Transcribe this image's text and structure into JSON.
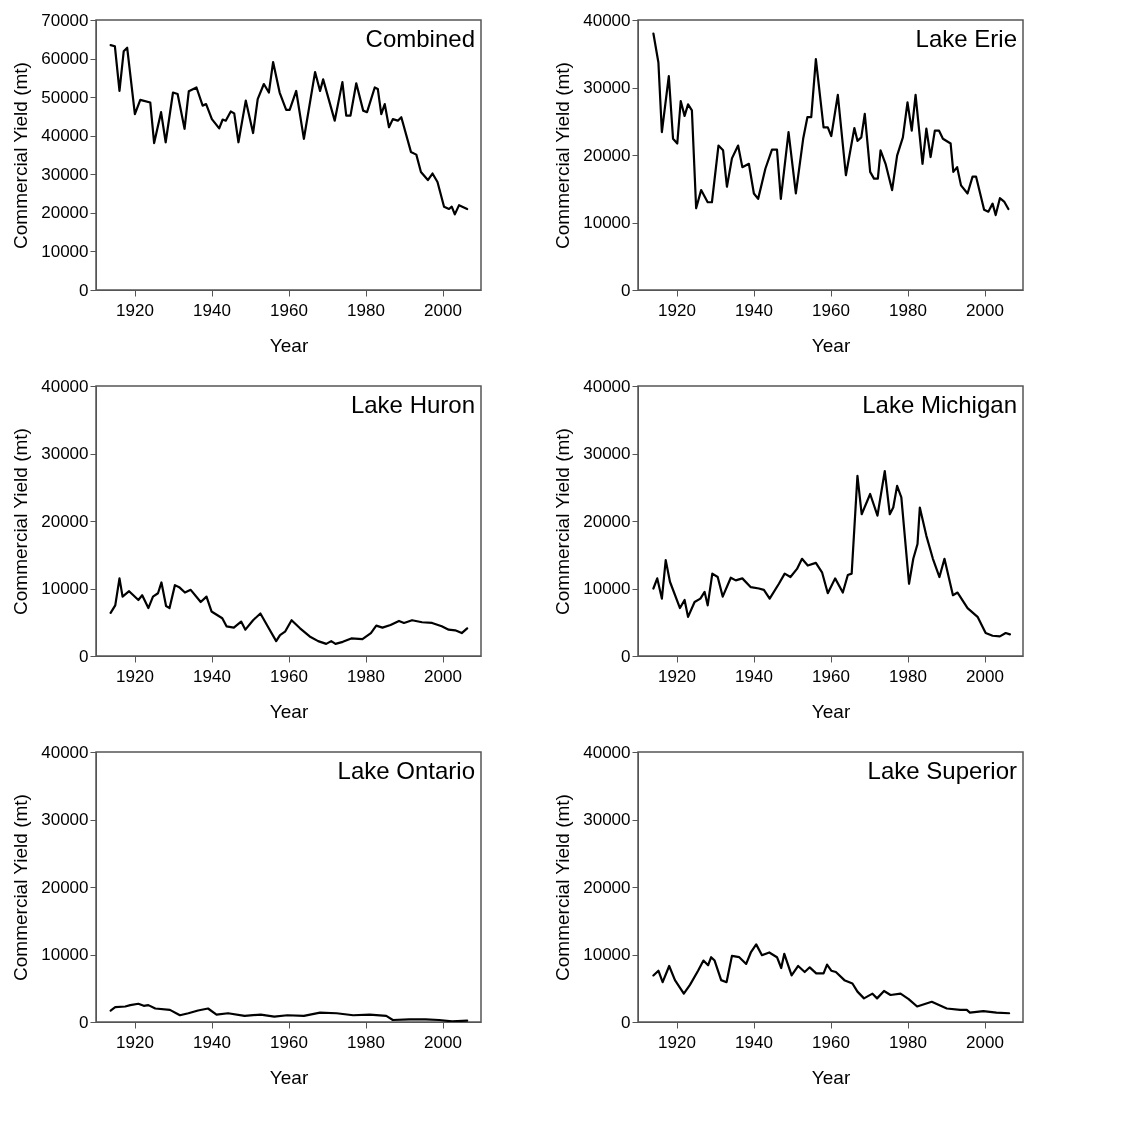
{
  "chart_data": [
    {
      "type": "line",
      "title": "Combined",
      "xlabel": "Year",
      "ylabel": "Commercial Yield (mt)",
      "xlim": [
        1910,
        2010
      ],
      "xticks": [
        1920,
        1940,
        1960,
        1980,
        2000
      ],
      "ylim": [
        0,
        70000
      ],
      "yticks": [
        0,
        10000,
        20000,
        30000,
        40000,
        50000,
        60000,
        70000
      ],
      "grid": false,
      "series": [
        {
          "color": "#000000",
          "x": [
            1913.8,
            1914.9,
            1916.1,
            1917.2,
            1918.1,
            1920.1,
            1921.5,
            1924.1,
            1925.1,
            1926.9,
            1928.1,
            1930.0,
            1931.2,
            1933.0,
            1934.1,
            1936.1,
            1937.7,
            1938.6,
            1940.1,
            1942.0,
            1942.9,
            1943.7,
            1945.0,
            1945.9,
            1947.0,
            1948.9,
            1950.8,
            1952.0,
            1953.6,
            1954.9,
            1956.0,
            1957.7,
            1959.4,
            1960.3,
            1962.0,
            1964.0,
            1966.9,
            1968.2,
            1969.0,
            1972.0,
            1974.0,
            1975.0,
            1976.1,
            1977.6,
            1979.4,
            1980.4,
            1982.4,
            1983.2,
            1984.1,
            1985.0,
            1986.1,
            1987.1,
            1988.4,
            1989.3,
            1991.8,
            1993.2,
            1994.4,
            1996.2,
            1997.4,
            1998.7,
            2000.4,
            2001.7,
            2002.4,
            2003.2,
            2004.3,
            2006.4
          ],
          "values": [
            63500,
            63200,
            51600,
            61900,
            62800,
            45600,
            49300,
            48600,
            38100,
            46100,
            38300,
            51200,
            50800,
            41800,
            51500,
            52500,
            47800,
            48200,
            44300,
            41900,
            44200,
            43900,
            46300,
            45800,
            38300,
            49100,
            40700,
            49500,
            53400,
            51200,
            59100,
            51200,
            46700,
            46700,
            51600,
            39200,
            56500,
            51600,
            54600,
            43900,
            53900,
            45200,
            45200,
            53600,
            46500,
            46100,
            52500,
            52100,
            45600,
            48200,
            42200,
            44300,
            43900,
            44800,
            35800,
            35100,
            30600,
            28500,
            30200,
            28000,
            21600,
            21000,
            21600,
            19600,
            22000,
            21000
          ]
        }
      ]
    },
    {
      "type": "line",
      "title": "Lake Erie",
      "xlabel": "Year",
      "ylabel": "Commercial Yield (mt)",
      "xlim": [
        1910,
        2010
      ],
      "xticks": [
        1920,
        1940,
        1960,
        1980,
        2000
      ],
      "ylim": [
        0,
        40000
      ],
      "yticks": [
        0,
        10000,
        20000,
        30000,
        40000
      ],
      "grid": false,
      "series": [
        {
          "color": "#000000",
          "x": [
            1914.0,
            1915.3,
            1916.2,
            1918.0,
            1919.1,
            1920.2,
            1921.1,
            1922.1,
            1923.0,
            1924.0,
            1925.1,
            1926.4,
            1928.1,
            1929.2,
            1930.9,
            1932.1,
            1933.1,
            1934.4,
            1936.0,
            1937.1,
            1938.8,
            1940.1,
            1941.2,
            1943.1,
            1944.8,
            1946.1,
            1947.1,
            1949.1,
            1951.0,
            1952.9,
            1954.0,
            1955.0,
            1956.2,
            1958.2,
            1959.3,
            1960.2,
            1961.9,
            1964.0,
            1966.2,
            1967.0,
            1968.0,
            1968.9,
            1970.3,
            1971.3,
            1972.3,
            1973.0,
            1974.3,
            1976.0,
            1977.3,
            1978.8,
            1980.0,
            1981.1,
            1982.1,
            1983.9,
            1984.9,
            1986.0,
            1987.1,
            1988.2,
            1989.2,
            1991.2,
            1991.9,
            1992.9,
            1993.9,
            1995.6,
            1996.9,
            1997.8,
            1999.9,
            2001.0,
            2002.1,
            2002.9,
            2004.0,
            2005.1,
            2006.2
          ],
          "values": [
            38000,
            33700,
            23400,
            31700,
            22400,
            21700,
            28000,
            25800,
            27500,
            26600,
            12100,
            14800,
            13000,
            13000,
            21400,
            20700,
            15300,
            19500,
            21400,
            18200,
            18700,
            14300,
            13500,
            18000,
            20800,
            20800,
            13500,
            23400,
            14300,
            22400,
            25600,
            25600,
            34200,
            24100,
            24100,
            22800,
            28900,
            17000,
            24000,
            22100,
            22600,
            26100,
            17500,
            16500,
            16500,
            20700,
            18700,
            14800,
            19900,
            22600,
            27800,
            23600,
            28900,
            18700,
            23900,
            19700,
            23600,
            23600,
            22400,
            21700,
            17500,
            18200,
            15500,
            14300,
            16800,
            16800,
            11900,
            11600,
            12800,
            11100,
            13600,
            13100,
            12000
          ]
        }
      ]
    },
    {
      "type": "line",
      "title": "Lake Huron",
      "xlabel": "Year",
      "ylabel": "Commercial Yield (mt)",
      "xlim": [
        1910,
        2010
      ],
      "xticks": [
        1920,
        1940,
        1960,
        1980,
        2000
      ],
      "ylim": [
        0,
        40000
      ],
      "yticks": [
        0,
        10000,
        20000,
        30000,
        40000
      ],
      "grid": false,
      "series": [
        {
          "color": "#000000",
          "x": [
            1913.8,
            1915.0,
            1916.1,
            1916.9,
            1918.6,
            1921.0,
            1922.0,
            1923.6,
            1924.8,
            1926.1,
            1927.0,
            1928.2,
            1929.1,
            1930.5,
            1931.6,
            1933.1,
            1934.6,
            1937.2,
            1938.7,
            1940.0,
            1942.8,
            1943.9,
            1945.8,
            1947.7,
            1948.8,
            1950.8,
            1952.7,
            1954.4,
            1956.8,
            1957.8,
            1959.1,
            1960.8,
            1963.0,
            1965.5,
            1967.7,
            1969.8,
            1971.1,
            1972.2,
            1974.1,
            1976.3,
            1979.2,
            1981.4,
            1982.8,
            1984.4,
            1986.5,
            1988.7,
            1990.0,
            1992.1,
            1994.7,
            1997.3,
            1999.8,
            2001.6,
            2003.3,
            2005.0,
            2006.4
          ],
          "values": [
            6400,
            7500,
            11500,
            8800,
            9600,
            8300,
            9000,
            7100,
            8800,
            9300,
            10900,
            7400,
            7100,
            10500,
            10200,
            9400,
            9800,
            8000,
            8800,
            6600,
            5600,
            4400,
            4200,
            5100,
            3900,
            5300,
            6300,
            4600,
            2200,
            3100,
            3600,
            5300,
            4100,
            2900,
            2200,
            1800,
            2200,
            1800,
            2100,
            2600,
            2500,
            3400,
            4500,
            4200,
            4600,
            5200,
            4900,
            5300,
            5000,
            4900,
            4400,
            3900,
            3800,
            3400,
            4100
          ]
        }
      ]
    },
    {
      "type": "line",
      "title": "Lake Michigan",
      "xlabel": "Year",
      "ylabel": "Commercial Yield (mt)",
      "xlim": [
        1910,
        2010
      ],
      "xticks": [
        1920,
        1940,
        1960,
        1980,
        2000
      ],
      "ylim": [
        0,
        40000
      ],
      "yticks": [
        0,
        10000,
        20000,
        30000,
        40000
      ],
      "grid": false,
      "series": [
        {
          "color": "#000000",
          "x": [
            1914.0,
            1915.0,
            1916.2,
            1917.2,
            1918.3,
            1920.9,
            1922.1,
            1923.0,
            1924.7,
            1926.2,
            1927.3,
            1928.1,
            1929.3,
            1930.7,
            1932.0,
            1934.1,
            1935.4,
            1937.1,
            1939.3,
            1941.4,
            1942.7,
            1944.2,
            1946.6,
            1948.1,
            1949.6,
            1951.3,
            1952.6,
            1954.1,
            1956.2,
            1957.8,
            1959.3,
            1961.2,
            1963.2,
            1964.5,
            1965.5,
            1967.0,
            1968.1,
            1970.3,
            1972.2,
            1974.1,
            1975.4,
            1976.3,
            1977.3,
            1978.4,
            1980.4,
            1981.5,
            1982.6,
            1983.2,
            1984.9,
            1986.6,
            1988.3,
            1989.6,
            1991.8,
            1993.0,
            1995.6,
            1998.2,
            2000.3,
            2002.1,
            2004.0,
            2005.5,
            2006.6
          ],
          "values": [
            10000,
            11500,
            8500,
            14200,
            11000,
            7100,
            8300,
            5800,
            8000,
            8500,
            9500,
            7500,
            12200,
            11700,
            8800,
            11600,
            11200,
            11500,
            10200,
            10000,
            9800,
            8500,
            10700,
            12200,
            11700,
            12900,
            14400,
            13400,
            13800,
            12400,
            9300,
            11500,
            9400,
            12000,
            12200,
            26700,
            21000,
            24000,
            20800,
            27400,
            21000,
            22000,
            25200,
            23500,
            10700,
            14400,
            16600,
            22000,
            17800,
            14400,
            11700,
            14400,
            9000,
            9400,
            7100,
            5800,
            3400,
            3000,
            2900,
            3400,
            3200
          ]
        }
      ]
    },
    {
      "type": "line",
      "title": "Lake Ontario",
      "xlabel": "Year",
      "ylabel": "Commercial Yield (mt)",
      "xlim": [
        1910,
        2010
      ],
      "xticks": [
        1920,
        1940,
        1960,
        1980,
        2000
      ],
      "ylim": [
        0,
        40000
      ],
      "yticks": [
        0,
        10000,
        20000,
        30000,
        40000
      ],
      "grid": false,
      "series": [
        {
          "color": "#000000",
          "x": [
            1913.8,
            1915.0,
            1917.6,
            1918.9,
            1921.0,
            1922.4,
            1923.6,
            1925.4,
            1929.2,
            1931.8,
            1934.0,
            1936.5,
            1939.1,
            1941.3,
            1944.3,
            1948.6,
            1952.8,
            1956.3,
            1959.7,
            1964.0,
            1968.2,
            1972.5,
            1976.8,
            1981.1,
            1985.4,
            1987.1,
            1991.4,
            1995.6,
            1999.1,
            2002.5,
            2006.4
          ],
          "values": [
            1700,
            2200,
            2300,
            2500,
            2700,
            2400,
            2500,
            2000,
            1800,
            1000,
            1300,
            1700,
            2000,
            1100,
            1300,
            900,
            1100,
            800,
            1000,
            900,
            1400,
            1300,
            1000,
            1100,
            900,
            300,
            400,
            400,
            300,
            100,
            200
          ]
        }
      ]
    },
    {
      "type": "line",
      "title": "Lake Superior",
      "xlabel": "Year",
      "ylabel": "Commercial Yield (mt)",
      "xlim": [
        1910,
        2010
      ],
      "xticks": [
        1920,
        1940,
        1960,
        1980,
        2000
      ],
      "ylim": [
        0,
        40000
      ],
      "yticks": [
        0,
        10000,
        20000,
        30000,
        40000
      ],
      "grid": false,
      "series": [
        {
          "color": "#000000",
          "x": [
            1914.0,
            1915.3,
            1916.4,
            1918.1,
            1919.6,
            1921.9,
            1923.5,
            1925.6,
            1927.0,
            1928.2,
            1929.0,
            1929.9,
            1931.6,
            1933.0,
            1934.4,
            1936.3,
            1938.1,
            1939.3,
            1940.7,
            1942.2,
            1944.1,
            1946.1,
            1947.2,
            1948.0,
            1949.9,
            1951.6,
            1953.3,
            1954.6,
            1956.3,
            1958.2,
            1959.1,
            1960.2,
            1961.4,
            1963.6,
            1965.7,
            1967.0,
            1968.7,
            1970.9,
            1972.1,
            1973.9,
            1975.6,
            1978.2,
            1980.3,
            1982.5,
            1986.3,
            1990.2,
            1993.7,
            1995.4,
            1996.2,
            1999.7,
            2003.1,
            2006.4
          ],
          "values": [
            6900,
            7600,
            5900,
            8300,
            6200,
            4200,
            5500,
            7600,
            9100,
            8400,
            9600,
            9100,
            6200,
            5900,
            9800,
            9600,
            8600,
            10300,
            11500,
            9900,
            10300,
            9600,
            8000,
            10100,
            6900,
            8300,
            7400,
            8100,
            7200,
            7200,
            8500,
            7600,
            7400,
            6200,
            5700,
            4500,
            3500,
            4200,
            3500,
            4600,
            4000,
            4200,
            3400,
            2300,
            3000,
            2000,
            1800,
            1800,
            1400,
            1600,
            1400,
            1300
          ]
        }
      ]
    }
  ]
}
